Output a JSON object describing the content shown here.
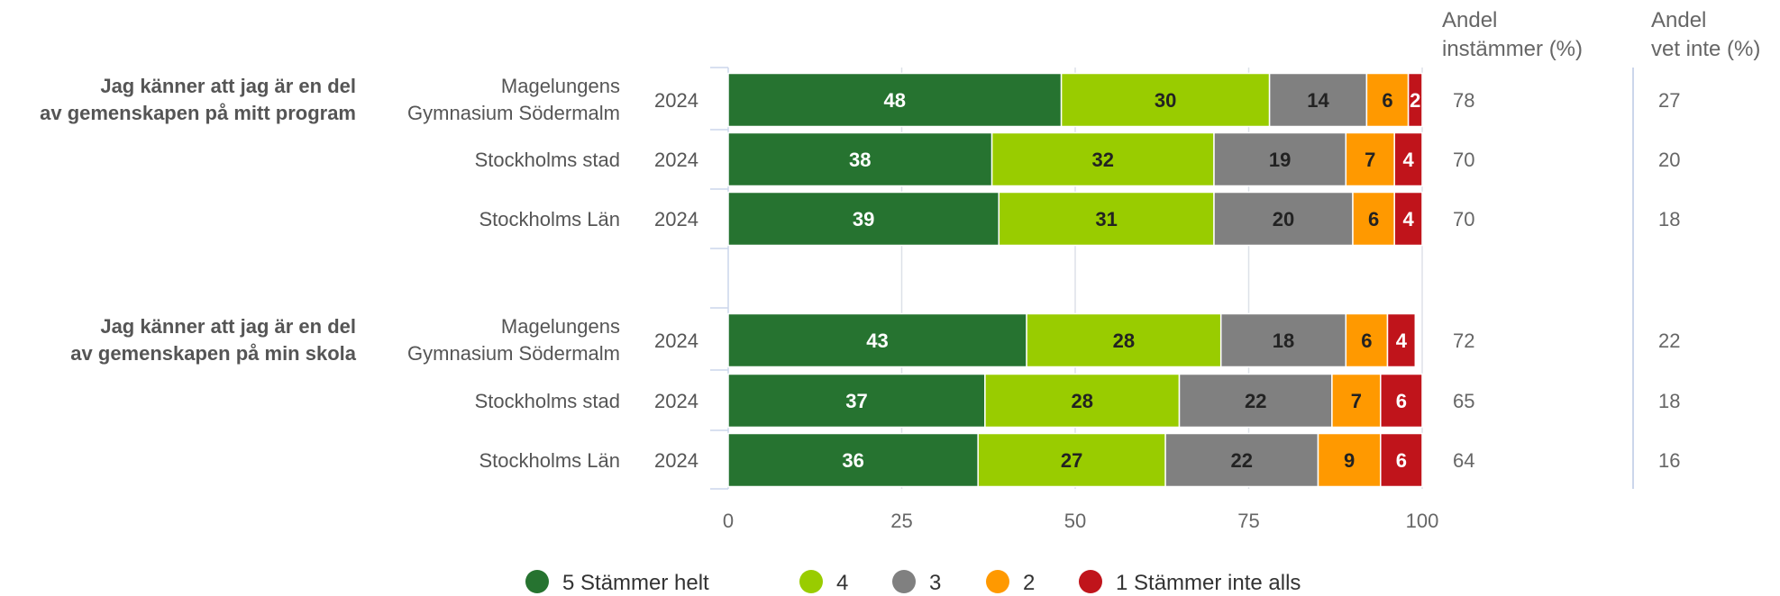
{
  "chart_data": {
    "type": "bar",
    "orientation": "horizontal",
    "stacked": true,
    "xlim": [
      0,
      100
    ],
    "xticks": [
      0,
      25,
      50,
      75,
      100
    ],
    "grid": true,
    "legend_placement": "bottom",
    "series": [
      {
        "name": "5 Stämmer helt",
        "color": "#267330"
      },
      {
        "name": "4",
        "color": "#99cc00"
      },
      {
        "name": "3",
        "color": "#808080"
      },
      {
        "name": "2",
        "color": "#ff9900"
      },
      {
        "name": "1 Stämmer inte alls",
        "color": "#c0141b"
      }
    ],
    "side_columns": [
      {
        "header_lines": [
          "Andel",
          "instämmer (%)"
        ]
      },
      {
        "header_lines": [
          "Andel",
          "vet inte (%)"
        ]
      }
    ],
    "groups": [
      {
        "question_lines": [
          "Jag känner att jag är en del",
          "av gemenskapen på mitt program"
        ],
        "rows": [
          {
            "label_lines": [
              "Magelungens",
              "Gymnasium Södermalm"
            ],
            "year": "2024",
            "values": [
              48,
              30,
              14,
              6,
              2
            ],
            "agree": 78,
            "dont_know": 27
          },
          {
            "label_lines": [
              "Stockholms stad"
            ],
            "year": "2024",
            "values": [
              38,
              32,
              19,
              7,
              4
            ],
            "agree": 70,
            "dont_know": 20
          },
          {
            "label_lines": [
              "Stockholms Län"
            ],
            "year": "2024",
            "values": [
              39,
              31,
              20,
              6,
              4
            ],
            "agree": 70,
            "dont_know": 18
          }
        ]
      },
      {
        "question_lines": [
          "Jag känner att jag är en del",
          "av gemenskapen på min skola"
        ],
        "rows": [
          {
            "label_lines": [
              "Magelungens",
              "Gymnasium Södermalm"
            ],
            "year": "2024",
            "values": [
              43,
              28,
              18,
              6,
              4
            ],
            "agree": 72,
            "dont_know": 22
          },
          {
            "label_lines": [
              "Stockholms stad"
            ],
            "year": "2024",
            "values": [
              37,
              28,
              22,
              7,
              6
            ],
            "agree": 65,
            "dont_know": 18
          },
          {
            "label_lines": [
              "Stockholms Län"
            ],
            "year": "2024",
            "values": [
              36,
              27,
              22,
              9,
              6
            ],
            "agree": 64,
            "dont_know": 16
          }
        ]
      }
    ]
  }
}
